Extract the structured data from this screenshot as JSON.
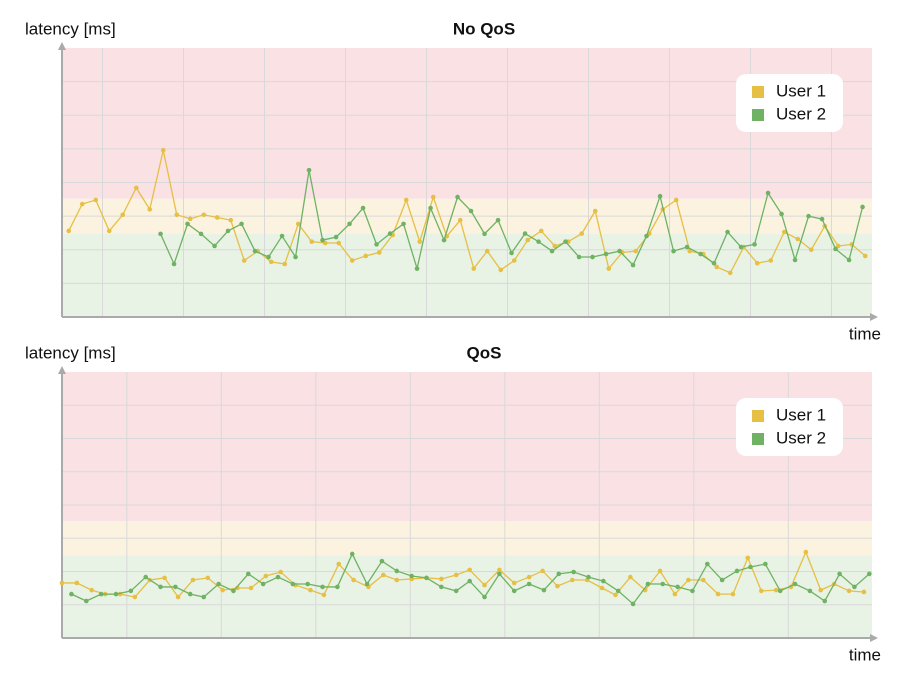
{
  "chart_data": [
    {
      "type": "line",
      "title": "No QoS",
      "y_label": "latency [ms]",
      "x_label": "time",
      "xlim": [
        0,
        60
      ],
      "ylim": [
        0,
        100
      ],
      "legend": "upper right",
      "xgrid": [
        3,
        9,
        15,
        21,
        27,
        33,
        39,
        45,
        51,
        57
      ],
      "ygrid": [
        12.5,
        25,
        37.5,
        50,
        62.5,
        75,
        87.5
      ],
      "zones": [
        {
          "from": 0,
          "to": 31,
          "color": "#e8f2e5"
        },
        {
          "from": 31,
          "to": 44,
          "color": "#fbf3e0"
        },
        {
          "from": 44,
          "to": 100,
          "color": "#f9e1e4"
        }
      ],
      "series": [
        {
          "name": "User 1",
          "color": "#e6bf45",
          "x": [
            0.5,
            1.5,
            2.5,
            3.5,
            4.5,
            5.5,
            6.5,
            7.5,
            8.5,
            9.5,
            10.5,
            11.5,
            12.5,
            13.5,
            14.5,
            15.5,
            16.5,
            17.5,
            18.5,
            19.5,
            20.5,
            21.5,
            22.5,
            23.5,
            24.5,
            25.5,
            26.5,
            27.5,
            28.5,
            29.5,
            30.5,
            31.5,
            32.5,
            33.5,
            34.5,
            35.5,
            36.5,
            37.5,
            38.5,
            39.5,
            40.5,
            41.5,
            42.5,
            43.5,
            44.5,
            45.5,
            46.5,
            47.5,
            48.5,
            49.5,
            50.5,
            51.5,
            52.5,
            53.5,
            54.5,
            55.5,
            56.5,
            57.5,
            58.5,
            59.5
          ],
          "values": [
            32,
            42,
            43.5,
            32,
            38,
            48,
            40,
            62,
            38,
            36.5,
            38,
            37,
            36,
            21,
            24.5,
            20.5,
            19.7,
            34.6,
            28,
            27.5,
            27.5,
            21,
            22.7,
            24,
            30.5,
            43.5,
            28,
            44.6,
            30,
            36,
            18,
            24.5,
            17.5,
            21,
            28.6,
            32,
            26.4,
            28,
            31,
            39.4,
            18,
            24,
            24.5,
            31,
            40,
            43.5,
            24.5,
            23.4,
            18.6,
            16.4,
            26,
            20,
            21,
            31.6,
            29,
            25,
            33.8,
            26.4,
            27,
            22.7
          ]
        },
        {
          "name": "User 2",
          "color": "#6fb264",
          "x": [
            7.3,
            8.3,
            9.3,
            10.3,
            11.3,
            12.3,
            13.3,
            14.3,
            15.3,
            16.3,
            17.3,
            18.3,
            19.3,
            20.3,
            21.3,
            22.3,
            23.3,
            24.3,
            25.3,
            26.3,
            27.3,
            28.3,
            29.3,
            30.3,
            31.3,
            32.3,
            33.3,
            34.3,
            35.3,
            36.3,
            37.3,
            38.3,
            39.3,
            40.3,
            41.3,
            42.3,
            43.3,
            44.3,
            45.3,
            46.3,
            47.3,
            48.3,
            49.3,
            50.3,
            51.3,
            52.3,
            53.3,
            54.3,
            55.3,
            56.3,
            57.3,
            58.3,
            59.3
          ],
          "values": [
            30.9,
            19.7,
            34.6,
            30.9,
            26.4,
            32,
            34.6,
            24.5,
            22.3,
            30.1,
            22.3,
            54.6,
            28.6,
            29.7,
            34.6,
            40.5,
            27,
            31,
            34.6,
            18,
            40.5,
            28.6,
            44.6,
            39.4,
            30.9,
            36,
            23.8,
            31,
            28,
            24.5,
            28,
            22.3,
            22.3,
            23.4,
            24.5,
            19.3,
            30.1,
            44.9,
            24.5,
            26,
            23.4,
            20,
            31.6,
            26,
            27,
            46.1,
            38.3,
            21.2,
            37.5,
            36.4,
            25.3,
            21.2,
            40.9
          ]
        }
      ]
    },
    {
      "type": "line",
      "title": "QoS",
      "y_label": "latency [ms]",
      "x_label": "time",
      "xlim": [
        0,
        60
      ],
      "ylim": [
        0,
        100
      ],
      "legend": "upper right",
      "xgrid": [
        4.8,
        11.8,
        18.8,
        25.8,
        32.8,
        39.8,
        46.8,
        53.8
      ],
      "ygrid": [
        12.5,
        25,
        37.5,
        50,
        62.5,
        75,
        87.5
      ],
      "zones": [
        {
          "from": 0,
          "to": 31,
          "color": "#e8f2e5"
        },
        {
          "from": 31,
          "to": 44,
          "color": "#fbf3e0"
        },
        {
          "from": 44,
          "to": 100,
          "color": "#f9e1e4"
        }
      ],
      "series": [
        {
          "name": "User 1",
          "color": "#e6bf45",
          "x": [
            0,
            1.1,
            2.2,
            3.2,
            4.3,
            5.4,
            6.5,
            7.6,
            8.6,
            9.7,
            10.8,
            11.9,
            13,
            14,
            15.1,
            16.2,
            17.3,
            18.4,
            19.4,
            20.5,
            21.6,
            22.7,
            23.8,
            24.8,
            25.9,
            27,
            28.1,
            29.2,
            30.2,
            31.3,
            32.4,
            33.5,
            34.6,
            35.6,
            36.7,
            37.8,
            38.9,
            40,
            41,
            42.1,
            43.2,
            44.3,
            45.4,
            46.4,
            47.5,
            48.6,
            49.7,
            50.8,
            51.8,
            52.9,
            54,
            55.1,
            56.2,
            57.2,
            58.3,
            59.4
          ],
          "values": [
            20.7,
            20.7,
            18,
            16.5,
            16.5,
            15.4,
            21.8,
            22.6,
            15.4,
            21.8,
            22.6,
            18,
            18.8,
            18.8,
            23.3,
            24.8,
            19.9,
            18,
            16.2,
            27.8,
            21.8,
            19.2,
            23.7,
            21.8,
            22.2,
            22.6,
            22.2,
            23.7,
            25.6,
            19.9,
            25.6,
            20.7,
            22.9,
            25.2,
            19.5,
            21.8,
            21.8,
            18.8,
            16.2,
            22.9,
            18,
            25.2,
            16.5,
            21.8,
            21.8,
            16.5,
            16.5,
            30.1,
            17.7,
            18,
            19.2,
            32.3,
            18,
            20.3,
            17.7,
            17.3
          ]
        },
        {
          "name": "User 2",
          "color": "#6fb264",
          "x": [
            0.7,
            1.8,
            2.9,
            4,
            5.1,
            6.2,
            7.3,
            8.4,
            9.5,
            10.5,
            11.6,
            12.7,
            13.8,
            14.9,
            16,
            17.1,
            18.2,
            19.3,
            20.4,
            21.5,
            22.6,
            23.7,
            24.8,
            25.9,
            27,
            28.1,
            29.2,
            30.2,
            31.3,
            32.4,
            33.5,
            34.6,
            35.7,
            36.8,
            37.9,
            39,
            40.1,
            41.2,
            42.3,
            43.4,
            44.5,
            45.6,
            46.7,
            47.8,
            48.9,
            50,
            51,
            52.1,
            53.2,
            54.3,
            55.4,
            56.5,
            57.6,
            58.7,
            59.8
          ],
          "values": [
            16.5,
            13.9,
            16.5,
            16.5,
            17.7,
            22.9,
            19.2,
            19.2,
            16.5,
            15.4,
            20.3,
            17.7,
            24.1,
            20.3,
            22.9,
            20.3,
            20.3,
            19.2,
            19.2,
            31.6,
            20.3,
            28.9,
            25.2,
            23.3,
            22.6,
            19.2,
            17.7,
            21.4,
            15.4,
            24.1,
            17.7,
            20.3,
            18,
            24.1,
            24.8,
            22.9,
            21.4,
            17.7,
            12.8,
            20.3,
            20.3,
            19.2,
            17.7,
            27.8,
            21.8,
            25.2,
            26.7,
            27.8,
            17.7,
            20.3,
            17.7,
            13.9,
            24.1,
            19.2,
            24.1
          ]
        }
      ]
    }
  ]
}
